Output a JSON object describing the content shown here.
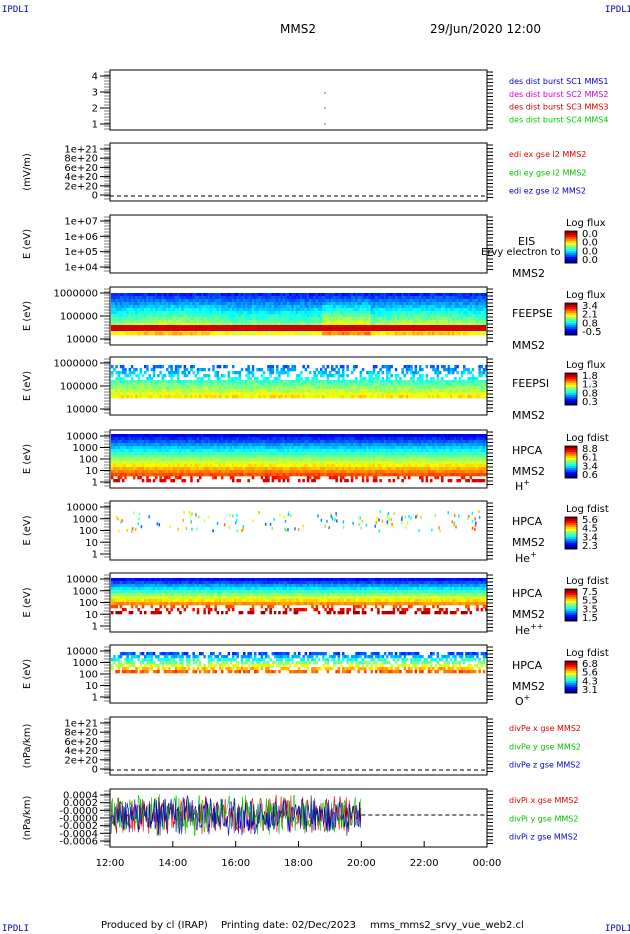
{
  "header": {
    "corner_tl": "IPDLI",
    "corner_tr": "IPDLI",
    "corner_bl": "IPDLI",
    "corner_br": "IPDLI",
    "spacecraft": "MMS2",
    "datetime": "29/Jun/2020 12:00"
  },
  "footer": {
    "produced": "Produced by cl (IRAP)",
    "printing": "Printing date: 02/Dec/2023",
    "file": "mms_mms2_srvy_vue_web2.cl"
  },
  "colors": {
    "mms1": "#0000c8",
    "mms2": "#d000d0",
    "mms3": "#d00000",
    "mms4": "#00c800",
    "x": "#e00000",
    "y": "#00c000",
    "z": "#0000c0"
  },
  "chart_data": [
    {
      "type": "scatter",
      "ylabel": "",
      "yticks": [
        "4",
        "3",
        "2",
        "1"
      ],
      "legend": [
        {
          "text": "des dist burst SC1 MMS1",
          "color": "#0000c8"
        },
        {
          "text": "des dist burst SC2 MMS2",
          "color": "#d000d0"
        },
        {
          "text": "des dist burst SC3 MMS3",
          "color": "#d00000"
        },
        {
          "text": "des dist burst SC4 MMS4",
          "color": "#00c800"
        }
      ]
    },
    {
      "type": "line",
      "ylabel": "(mV/m)",
      "yticks": [
        "1e+21",
        "8e+20",
        "6e+20",
        "4e+20",
        "2e+20",
        "0"
      ],
      "legend": [
        {
          "text": "edi ex gse l2 MMS2",
          "color": "#e00000"
        },
        {
          "text": "edi ey gse l2 MMS2",
          "color": "#00c000"
        },
        {
          "text": "edi ez gse l2 MMS2",
          "color": "#0000c0"
        }
      ]
    },
    {
      "type": "heatmap",
      "ylabel": "E (eV)",
      "yticks": [
        "1e+07",
        "1e+06",
        "1e+05",
        "1e+04"
      ],
      "instrument": "EIS",
      "species": "Ervy electron to",
      "sc": "MMS2",
      "cbar_title": "Log flux",
      "cbar_ticks": [
        "0.0",
        "0.0",
        "0.0",
        "0.0"
      ]
    },
    {
      "type": "heatmap",
      "ylabel": "E (eV)",
      "yticks": [
        "1000000",
        "100000",
        "10000"
      ],
      "instrument": "FEEPSE",
      "sc": "MMS2",
      "cbar_title": "Log flux",
      "cbar_ticks": [
        "3.4",
        "2.1",
        "0.8",
        "-0.5"
      ]
    },
    {
      "type": "heatmap",
      "ylabel": "E (eV)",
      "yticks": [
        "1000000",
        "100000",
        "10000"
      ],
      "instrument": "FEEPSI",
      "sc": "MMS2",
      "cbar_title": "Log flux",
      "cbar_ticks": [
        "1.8",
        "1.3",
        "0.8",
        "0.3"
      ]
    },
    {
      "type": "heatmap",
      "ylabel": "E (eV)",
      "yticks": [
        "10000",
        "1000",
        "100",
        "10",
        "1"
      ],
      "instrument": "HPCA",
      "sc": "MMS2",
      "ion": "H",
      "ion_charge": "+",
      "cbar_title": "Log fdist",
      "cbar_ticks": [
        "8.8",
        "6.1",
        "3.4",
        "0.6"
      ]
    },
    {
      "type": "heatmap",
      "ylabel": "E (eV)",
      "yticks": [
        "10000",
        "1000",
        "100",
        "10",
        "1"
      ],
      "instrument": "HPCA",
      "sc": "MMS2",
      "ion": "He",
      "ion_charge": "+",
      "cbar_title": "Log fdist",
      "cbar_ticks": [
        "5.6",
        "4.5",
        "3.4",
        "2.3"
      ]
    },
    {
      "type": "heatmap",
      "ylabel": "E (eV)",
      "yticks": [
        "10000",
        "1000",
        "100",
        "10",
        "1"
      ],
      "instrument": "HPCA",
      "sc": "MMS2",
      "ion": "He",
      "ion_charge": "++",
      "cbar_title": "Log fdist",
      "cbar_ticks": [
        "7.5",
        "5.5",
        "3.5",
        "1.5"
      ]
    },
    {
      "type": "heatmap",
      "ylabel": "E (eV)",
      "yticks": [
        "10000",
        "1000",
        "100",
        "10",
        "1"
      ],
      "instrument": "HPCA",
      "sc": "MMS2",
      "ion": "O",
      "ion_charge": "+",
      "cbar_title": "Log fdist",
      "cbar_ticks": [
        "6.8",
        "5.6",
        "4.3",
        "3.1"
      ]
    },
    {
      "type": "line",
      "ylabel": "(nPa/km)",
      "yticks": [
        "1e+21",
        "8e+20",
        "6e+20",
        "4e+20",
        "2e+20",
        "0"
      ],
      "legend": [
        {
          "text": "divPe x gse MMS2",
          "color": "#e00000"
        },
        {
          "text": "divPe y gse MMS2",
          "color": "#00c000"
        },
        {
          "text": "divPe z gse MMS2",
          "color": "#0000c0"
        }
      ]
    },
    {
      "type": "line",
      "ylabel": "(nPa/km)",
      "yticks": [
        "0.0004",
        "0.0002",
        "-0.0000",
        "-0.0000",
        "-0.0002",
        "-0.0004",
        "-0.0006"
      ],
      "legend": [
        {
          "text": "divPi x gse MMS2",
          "color": "#e00000"
        },
        {
          "text": "divPi y gse MMS2",
          "color": "#00c000"
        },
        {
          "text": "divPi z gse MMS2",
          "color": "#0000c0"
        }
      ]
    }
  ],
  "xaxis": {
    "ticks": [
      "12:00",
      "14:00",
      "16:00",
      "18:00",
      "20:00",
      "22:00",
      "00:00"
    ],
    "data_end": "20:00"
  }
}
